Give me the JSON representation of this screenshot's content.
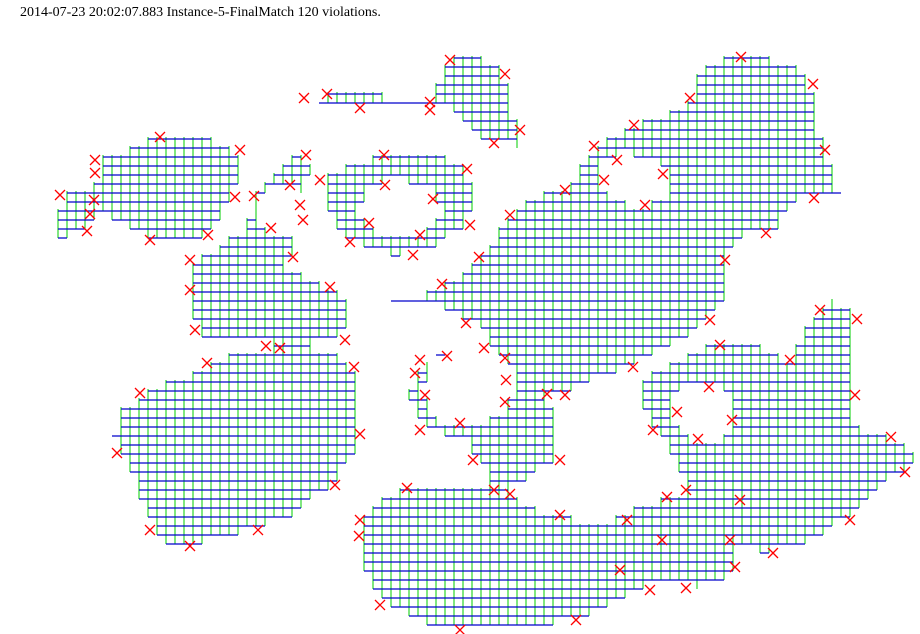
{
  "caption": "2014-07-23 20:02:07.883 Instance-5-FinalMatch 120 violations.",
  "colors": {
    "horizontal_segment": "#0000cc",
    "vertical_segment": "#00cc00",
    "violation_marker": "#ff0000",
    "background": "#ffffff"
  },
  "legend_semantics": {
    "violation_marker_icon": "red-x-icon"
  }
}
